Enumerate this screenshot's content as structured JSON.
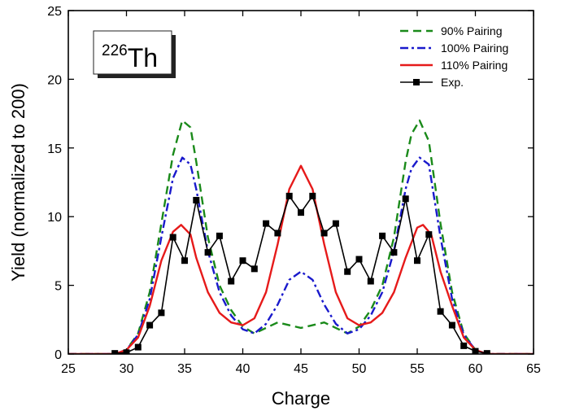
{
  "chart_data": {
    "type": "line",
    "title": "",
    "nucleus": {
      "mass_number": "226",
      "symbol": "Th"
    },
    "xlabel": "Charge",
    "ylabel": "Yield (normalized to 200)",
    "xlim": [
      25,
      65
    ],
    "ylim": [
      0,
      25
    ],
    "xticks": [
      "25",
      "30",
      "35",
      "40",
      "45",
      "50",
      "55",
      "60",
      "65"
    ],
    "yticks": [
      "0",
      "5",
      "10",
      "15",
      "20",
      "25"
    ],
    "grid": false,
    "legend_position": "top-right",
    "series": [
      {
        "name": "90% Pairing",
        "color": "#1a8a1a",
        "style": "dashed",
        "x": [
          25,
          29,
          30,
          31,
          32,
          33,
          34,
          34.8,
          35.5,
          36,
          37,
          38,
          39,
          40,
          41,
          42,
          43,
          44,
          45,
          46,
          47,
          48,
          49,
          50,
          51,
          52,
          53,
          54,
          54.5,
          55.2,
          56,
          57,
          58,
          59,
          60,
          61,
          65
        ],
        "y": [
          0,
          0,
          0.3,
          1.5,
          4.5,
          9.5,
          14.5,
          17.0,
          16.5,
          14.0,
          8.5,
          5.0,
          3.2,
          2.0,
          1.5,
          1.9,
          2.3,
          2.1,
          1.9,
          2.1,
          2.3,
          1.9,
          1.5,
          2.0,
          3.2,
          5.0,
          8.5,
          14.0,
          16.0,
          17.0,
          15.5,
          9.5,
          4.5,
          1.5,
          0.3,
          0,
          0
        ]
      },
      {
        "name": "100% Pairing",
        "color": "#1a1acc",
        "style": "dashdot",
        "x": [
          25,
          29,
          30,
          31,
          32,
          33,
          34,
          34.8,
          35.5,
          36,
          37,
          38,
          39,
          40,
          41,
          42,
          43,
          44,
          45,
          46,
          47,
          48,
          49,
          50,
          51,
          52,
          53,
          54,
          54.5,
          55.2,
          56,
          57,
          58,
          59,
          60,
          61,
          65
        ],
        "y": [
          0,
          0,
          0.3,
          1.4,
          4.0,
          8.5,
          12.8,
          14.3,
          13.8,
          12.0,
          7.5,
          4.5,
          2.8,
          1.8,
          1.5,
          2.2,
          3.6,
          5.4,
          6.0,
          5.4,
          3.6,
          2.2,
          1.5,
          1.8,
          2.8,
          4.5,
          7.5,
          12.0,
          13.5,
          14.3,
          13.8,
          8.5,
          4.0,
          1.4,
          0.3,
          0,
          0
        ]
      },
      {
        "name": "110% Pairing",
        "color": "#e61a1a",
        "style": "solid",
        "x": [
          25,
          29,
          30,
          31,
          32,
          33,
          34,
          34.7,
          35.5,
          36,
          37,
          38,
          39,
          40,
          41,
          42,
          43,
          44,
          45,
          46,
          47,
          48,
          49,
          50,
          51,
          52,
          53,
          54,
          55,
          55.5,
          56.2,
          57,
          58,
          59,
          60,
          61,
          65
        ],
        "y": [
          0,
          0,
          0.3,
          1.2,
          3.5,
          6.8,
          8.9,
          9.4,
          8.7,
          7.0,
          4.5,
          3.0,
          2.3,
          2.1,
          2.6,
          4.5,
          8.0,
          12.0,
          13.7,
          12.0,
          8.0,
          4.5,
          2.6,
          2.1,
          2.3,
          3.0,
          4.5,
          7.0,
          9.2,
          9.4,
          8.7,
          6.0,
          3.5,
          1.2,
          0.3,
          0,
          0
        ]
      },
      {
        "name": "Exp.",
        "color": "#000000",
        "style": "solid-square-markers",
        "x": [
          29,
          30,
          31,
          32,
          33,
          34,
          35,
          36,
          37,
          38,
          39,
          40,
          41,
          42,
          43,
          44,
          45,
          46,
          47,
          48,
          49,
          50,
          51,
          52,
          53,
          54,
          55,
          56,
          57,
          58,
          59,
          60,
          61
        ],
        "y": [
          0.05,
          0.1,
          0.5,
          2.1,
          3.0,
          8.5,
          6.8,
          11.2,
          7.4,
          8.6,
          5.3,
          6.8,
          6.2,
          9.5,
          8.8,
          11.5,
          10.3,
          11.5,
          8.8,
          9.5,
          6.0,
          6.9,
          5.3,
          8.6,
          7.4,
          11.3,
          6.8,
          8.7,
          3.1,
          2.1,
          0.6,
          0.2,
          0.05
        ]
      }
    ]
  }
}
